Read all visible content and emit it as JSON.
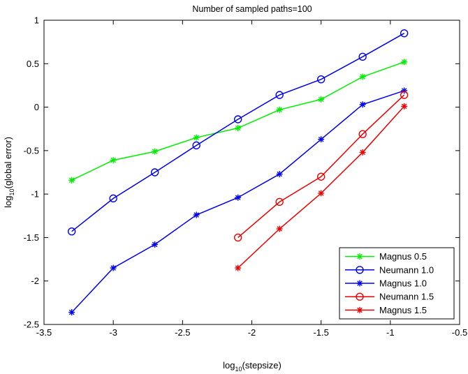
{
  "chart_data": {
    "type": "line",
    "title": "Number of sampled paths=100",
    "xlabel_base": "log",
    "xlabel_sub": "10",
    "xlabel_rest": "(stepsize)",
    "ylabel_base": "log",
    "ylabel_sub": "10",
    "ylabel_rest": "(global error)",
    "xlim": [
      -3.5,
      -0.5
    ],
    "ylim": [
      -2.5,
      1
    ],
    "xticks": [
      -3.5,
      -3,
      -2.5,
      -2,
      -1.5,
      -1,
      -0.5
    ],
    "xtick_labels": [
      "-3.5",
      "-3",
      "-2.5",
      "-2",
      "-1.5",
      "-1",
      "-0.5"
    ],
    "yticks": [
      -2.5,
      -2,
      -1.5,
      -1,
      -0.5,
      0,
      0.5,
      1
    ],
    "ytick_labels": [
      "-2.5",
      "-2",
      "-1.5",
      "-1",
      "-0.5",
      "0",
      "0.5",
      "1"
    ],
    "grid": false,
    "legend_position": "bottom-right",
    "series": [
      {
        "name": "Magnus 0.5",
        "color": "#00ee00",
        "marker": "star",
        "x": [
          -3.3,
          -3.0,
          -2.7,
          -2.4,
          -2.1,
          -1.8,
          -1.5,
          -1.2,
          -0.9
        ],
        "y": [
          -0.84,
          -0.61,
          -0.51,
          -0.35,
          -0.24,
          -0.03,
          0.09,
          0.35,
          0.52
        ]
      },
      {
        "name": "Neumann 1.0",
        "color": "#0000ee",
        "marker": "circle",
        "x": [
          -3.3,
          -3.0,
          -2.7,
          -2.4,
          -2.1,
          -1.8,
          -1.5,
          -1.2,
          -0.9
        ],
        "y": [
          -1.43,
          -1.05,
          -0.75,
          -0.44,
          -0.14,
          0.14,
          0.32,
          0.58,
          0.85
        ]
      },
      {
        "name": "Magnus 1.0",
        "color": "#0000ee",
        "marker": "star",
        "x": [
          -3.3,
          -3.0,
          -2.7,
          -2.4,
          -2.1,
          -1.8,
          -1.5,
          -1.2,
          -0.9
        ],
        "y": [
          -2.36,
          -1.85,
          -1.58,
          -1.24,
          -1.04,
          -0.77,
          -0.37,
          0.03,
          0.19
        ]
      },
      {
        "name": "Neumann 1.5",
        "color": "#ee0000",
        "marker": "circle",
        "x": [
          -2.1,
          -1.8,
          -1.5,
          -1.2,
          -0.9
        ],
        "y": [
          -1.5,
          -1.09,
          -0.8,
          -0.31,
          0.14
        ]
      },
      {
        "name": "Magnus 1.5",
        "color": "#ee0000",
        "marker": "star",
        "x": [
          -2.1,
          -1.8,
          -1.5,
          -1.2,
          -0.9
        ],
        "y": [
          -1.85,
          -1.4,
          -0.99,
          -0.52,
          0.01
        ]
      }
    ]
  }
}
